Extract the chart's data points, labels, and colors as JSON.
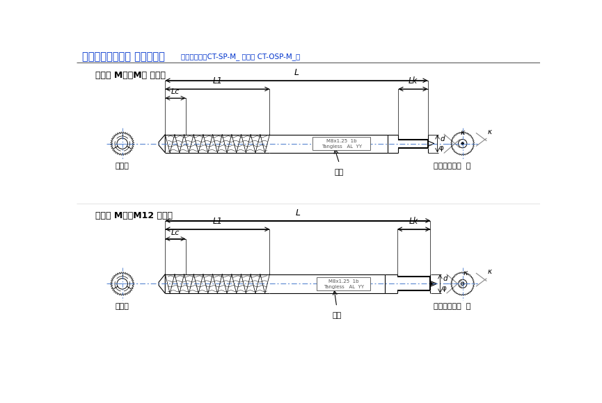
{
  "title_bold": "スパイラルタップ 共通仕様図",
  "subtitle": "（製品番号：CT-SP-M_ および CT-OSP-M_）",
  "section1_label": "サイズ M２～M５ の形状",
  "section2_label": "サイズ M６～M12 の形状",
  "label_3maitachi": "３枚刃",
  "label_center1": "センター形状  凸",
  "label_center2": "センター形状  凹",
  "label_kakuin": "刷印",
  "dim_L": "L",
  "dim_L1": "L1",
  "dim_Lc": "Lc",
  "dim_Lk": "Lk",
  "dim_d": "d",
  "dim_phi": "φ",
  "dim_k": "κ",
  "bg_color": "#ffffff",
  "title_color": "#0033cc",
  "line_color": "#000000",
  "blue_line_color": "#4477cc",
  "gray_line_color": "#888888"
}
